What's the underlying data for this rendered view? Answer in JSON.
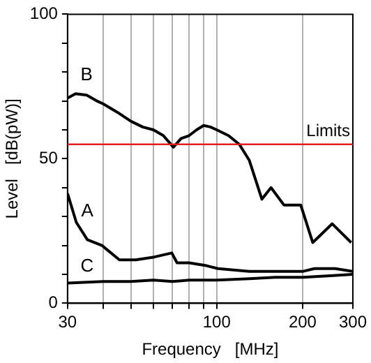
{
  "chart_data": {
    "type": "line",
    "xlabel": "Frequency   [MHz]",
    "ylabel": "Level   [dB(pW)]",
    "log": "x",
    "grid": "x",
    "legend": false,
    "marker": "none",
    "line_style": "solid",
    "xlim": [
      30,
      300
    ],
    "xticks": [
      30,
      {
        "value": 40,
        "label": null
      },
      {
        "value": 50,
        "label": null
      },
      {
        "value": 60,
        "label": null
      },
      {
        "value": 70,
        "label": null
      },
      {
        "value": 80,
        "label": null
      },
      {
        "value": 90,
        "label": null
      },
      100,
      200,
      300
    ],
    "ylim": [
      0,
      100
    ],
    "yticks": [
      0,
      {
        "value": 10,
        "label": null
      },
      {
        "value": 20,
        "label": null
      },
      {
        "value": 30,
        "label": null
      },
      {
        "value": 40,
        "label": null
      },
      50,
      {
        "value": 60,
        "label": null
      },
      {
        "value": 70,
        "label": null
      },
      {
        "value": 80,
        "label": null
      },
      {
        "value": 90,
        "label": null
      },
      100
    ],
    "series": [
      {
        "name": "B",
        "color": "#000000",
        "x": [
          30,
          32,
          35,
          38,
          40,
          45,
          50,
          55,
          60,
          65,
          70.5,
          75,
          80,
          85,
          90,
          95,
          100,
          110,
          120,
          130,
          144,
          155,
          172,
          197,
          217,
          254,
          296
        ],
        "values": [
          71,
          72.5,
          72,
          70,
          69,
          66,
          63,
          61,
          60,
          58,
          54,
          57,
          58,
          60,
          61.5,
          61,
          60,
          58,
          55,
          49.5,
          36,
          40,
          34,
          34,
          21,
          27.5,
          21
        ]
      },
      {
        "name": "A",
        "color": "#000000",
        "x": [
          30,
          32.2,
          35.2,
          39.6,
          45.6,
          52,
          60.4,
          69.6,
          72.6,
          80,
          92,
          101,
          130,
          160,
          200,
          220,
          260,
          300
        ],
        "values": [
          38,
          28,
          22,
          20,
          15,
          15,
          16,
          17.4,
          14,
          14,
          13,
          12,
          11,
          11,
          11,
          12,
          12,
          11
        ]
      },
      {
        "name": "C",
        "color": "#000000",
        "x": [
          30,
          40,
          50,
          60,
          70,
          80,
          90,
          100,
          130,
          160,
          200,
          250,
          300
        ],
        "values": [
          7,
          7.5,
          7.5,
          8,
          7.5,
          8,
          8,
          8,
          8.5,
          9,
          9,
          9.5,
          10
        ]
      }
    ],
    "ref_lines": [
      {
        "axis": "y",
        "value": 55,
        "label": "Limits",
        "color": "#e02020"
      }
    ]
  }
}
